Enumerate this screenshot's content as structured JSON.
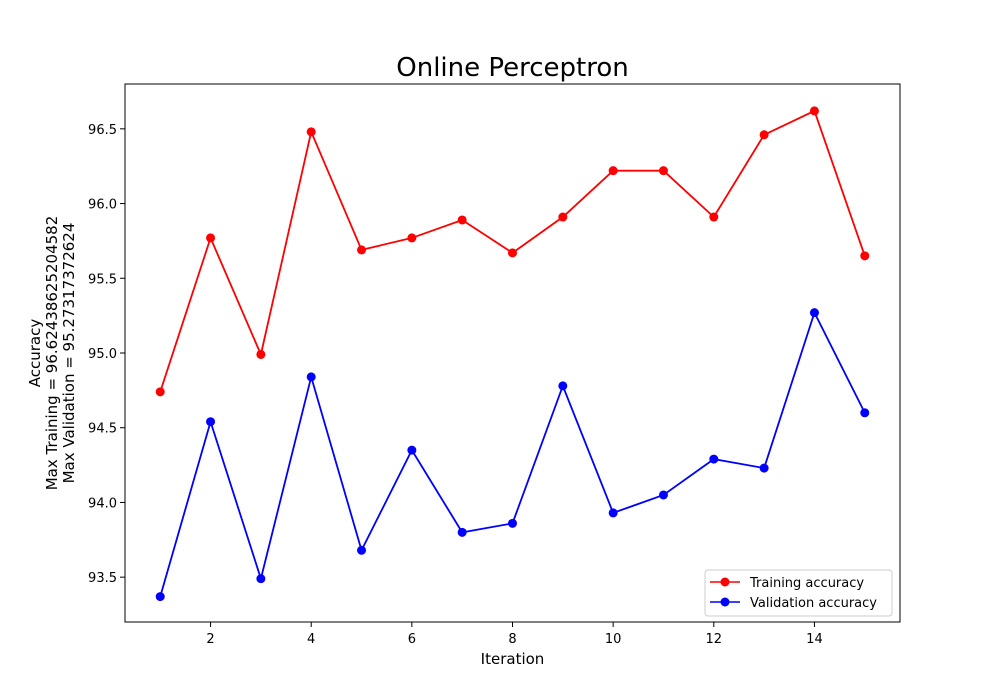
{
  "chart_data": {
    "type": "line",
    "title": "Online Perceptron",
    "xlabel": "Iteration",
    "ylabel": [
      "Accuracy",
      "Max Training = 96.62438625204582",
      "Max Validation = 95.27317372624"
    ],
    "x": [
      1,
      2,
      3,
      4,
      5,
      6,
      7,
      8,
      9,
      10,
      11,
      12,
      13,
      14,
      15
    ],
    "xlim": [
      0.3,
      15.7
    ],
    "ylim": [
      93.2,
      96.8
    ],
    "xticks": [
      2,
      4,
      6,
      8,
      10,
      12,
      14
    ],
    "yticks": [
      93.5,
      94.0,
      94.5,
      95.0,
      95.5,
      96.0,
      96.5
    ],
    "ytick_labels": [
      "93.5",
      "94.0",
      "94.5",
      "95.0",
      "95.5",
      "96.0",
      "96.5"
    ],
    "grid": false,
    "legend_position": "bottom-right",
    "series": [
      {
        "name": "Training accuracy",
        "color": "#ff0000",
        "marker": "circle",
        "values": [
          94.74,
          95.77,
          94.99,
          96.48,
          95.69,
          95.77,
          95.89,
          95.67,
          95.91,
          96.22,
          96.22,
          95.91,
          96.46,
          96.62,
          95.65
        ]
      },
      {
        "name": "Validation accuracy",
        "color": "#0000ff",
        "marker": "circle",
        "values": [
          93.37,
          94.54,
          93.49,
          94.84,
          93.68,
          94.35,
          93.8,
          93.86,
          94.78,
          93.93,
          94.05,
          94.29,
          94.23,
          95.27,
          94.6
        ]
      }
    ]
  }
}
